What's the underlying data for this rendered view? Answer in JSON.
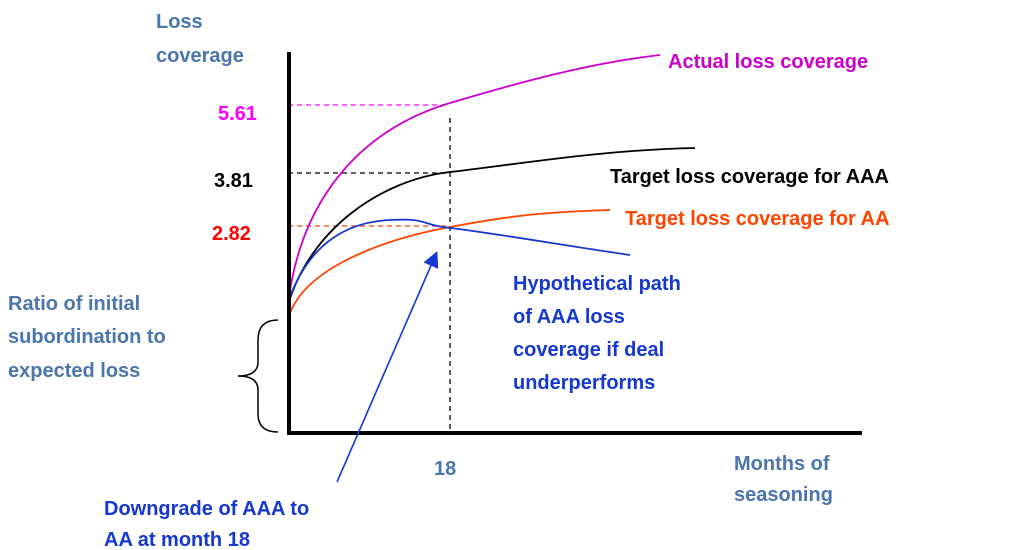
{
  "y_axis_title": [
    "Loss",
    "coverage"
  ],
  "x_axis_title": [
    "Months of",
    "seasoning"
  ],
  "levels": [
    "5.61",
    "3.81",
    "2.82"
  ],
  "x_marker": "18",
  "curves": {
    "actual": "Actual loss coverage",
    "target_aaa": "Target loss coverage for AAA",
    "target_aa": "Target loss coverage for AA",
    "hypothetical": [
      "Hypothetical path",
      "of AAA loss",
      "coverage if deal",
      "underperforms"
    ]
  },
  "brace_label": [
    "Ratio of initial",
    "subordination to",
    "expected loss"
  ],
  "arrow_label": [
    "Downgrade of AAA to",
    "AA at month 18"
  ]
}
